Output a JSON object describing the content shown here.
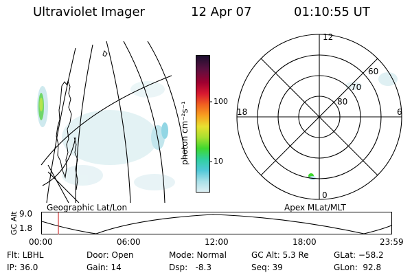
{
  "header": {
    "instrument": "Ultraviolet Imager",
    "date": "12 Apr 07",
    "time": "01:10:55 UT"
  },
  "geo_panel": {
    "caption": "Geographic Lat/Lon"
  },
  "colorbar": {
    "axis_label": "photon cm⁻²s⁻¹",
    "ticks": [
      "100",
      "10"
    ],
    "colors": [
      "#1a0f2e",
      "#5a1040",
      "#a00030",
      "#d81830",
      "#f06020",
      "#f8a020",
      "#e8e030",
      "#a8e030",
      "#40d830",
      "#30d0a0",
      "#50c8d8",
      "#a8e0e8",
      "#e0f0f4"
    ]
  },
  "polar_panel": {
    "caption": "Apex MLat/MLT",
    "mlt_labels": {
      "top": "12",
      "left": "18",
      "right": "6",
      "bottom": "0"
    },
    "lat_labels": [
      "60",
      "70",
      "80"
    ]
  },
  "altitude_plot": {
    "ylabel": "GC Alt",
    "yticks": [
      "9.0",
      "1.8"
    ],
    "xticks": [
      "00:00",
      "06:00",
      "12:00",
      "18:00",
      "23:59"
    ],
    "marker_color": "#d03030"
  },
  "footer": {
    "filter": "Flt: LBHL",
    "ip": "IP: 36.0",
    "door": "Door: Open",
    "gain": "Gain: 14",
    "mode": "Mode: Normal",
    "dsp": "Dsp:   -8.3",
    "gc_alt": "GC Alt: 5.3 Re",
    "seq": "Seq: 39",
    "glat": "GLat: −58.2",
    "glon": "GLon:  92.8"
  }
}
